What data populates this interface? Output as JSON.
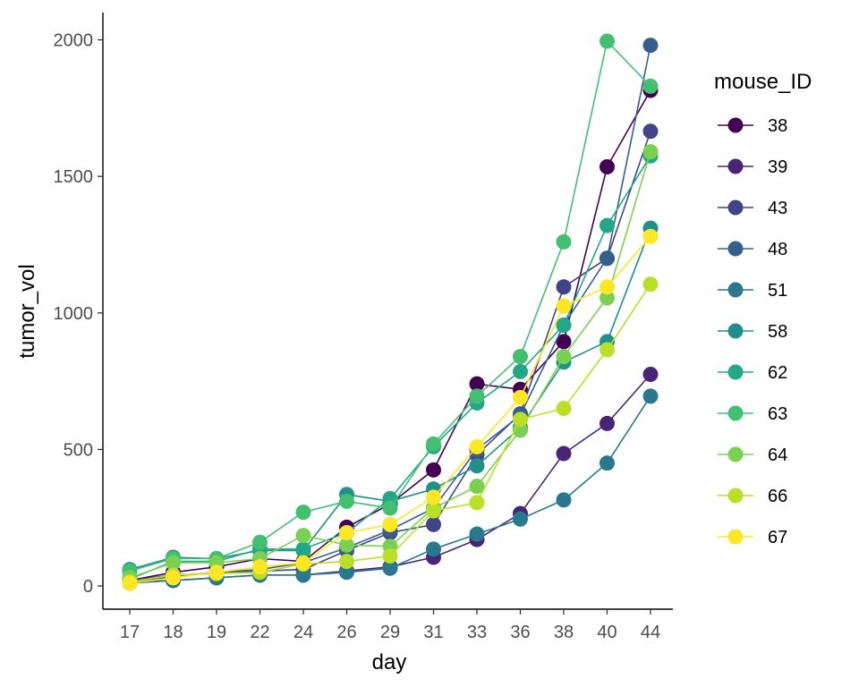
{
  "chart_data": {
    "type": "line",
    "xlabel": "day",
    "ylabel": "tumor_vol",
    "categories": [
      "17",
      "18",
      "19",
      "22",
      "24",
      "26",
      "29",
      "31",
      "33",
      "36",
      "38",
      "40",
      "44"
    ],
    "ylim": [
      -85,
      2100
    ],
    "yticks": [
      0,
      500,
      1000,
      1500,
      2000
    ],
    "grid": false,
    "legend": {
      "title": "mouse_ID",
      "position": "right"
    },
    "series": [
      {
        "name": "38",
        "color": "#440154",
        "values": [
          20,
          50,
          70,
          100,
          90,
          215,
          300,
          425,
          740,
          720,
          895,
          1535,
          1815
        ]
      },
      {
        "name": "39",
        "color": "#482576",
        "values": [
          15,
          20,
          30,
          40,
          40,
          55,
          70,
          105,
          170,
          265,
          485,
          595,
          775
        ]
      },
      {
        "name": "43",
        "color": "#414487",
        "values": [
          20,
          40,
          45,
          55,
          60,
          130,
          195,
          225,
          480,
          630,
          1095,
          1200,
          1665
        ]
      },
      {
        "name": "48",
        "color": "#35608D",
        "values": [
          15,
          35,
          50,
          60,
          85,
          140,
          205,
          285,
          500,
          625,
          955,
          1200,
          1980
        ]
      },
      {
        "name": "51",
        "color": "#2A788E",
        "values": [
          10,
          20,
          30,
          40,
          40,
          50,
          65,
          135,
          190,
          245,
          315,
          450,
          695
        ]
      },
      {
        "name": "58",
        "color": "#21908C",
        "values": [
          60,
          105,
          100,
          130,
          130,
          335,
          310,
          355,
          440,
          580,
          820,
          895,
          1310
        ]
      },
      {
        "name": "62",
        "color": "#22A884",
        "values": [
          25,
          90,
          90,
          135,
          135,
          195,
          320,
          510,
          670,
          785,
          955,
          1320,
          1575
        ]
      },
      {
        "name": "63",
        "color": "#43BF71",
        "values": [
          55,
          100,
          100,
          160,
          270,
          310,
          285,
          520,
          695,
          840,
          1260,
          1995,
          1830
        ]
      },
      {
        "name": "64",
        "color": "#7AD151",
        "values": [
          30,
          85,
          85,
          100,
          185,
          150,
          145,
          285,
          365,
          570,
          840,
          1055,
          1590
        ]
      },
      {
        "name": "66",
        "color": "#BBDF27",
        "values": [
          15,
          40,
          45,
          50,
          80,
          90,
          110,
          275,
          305,
          610,
          650,
          865,
          1105
        ]
      },
      {
        "name": "67",
        "color": "#FDE725",
        "values": [
          10,
          30,
          50,
          70,
          85,
          195,
          225,
          325,
          510,
          690,
          1025,
          1095,
          1280
        ]
      }
    ]
  }
}
